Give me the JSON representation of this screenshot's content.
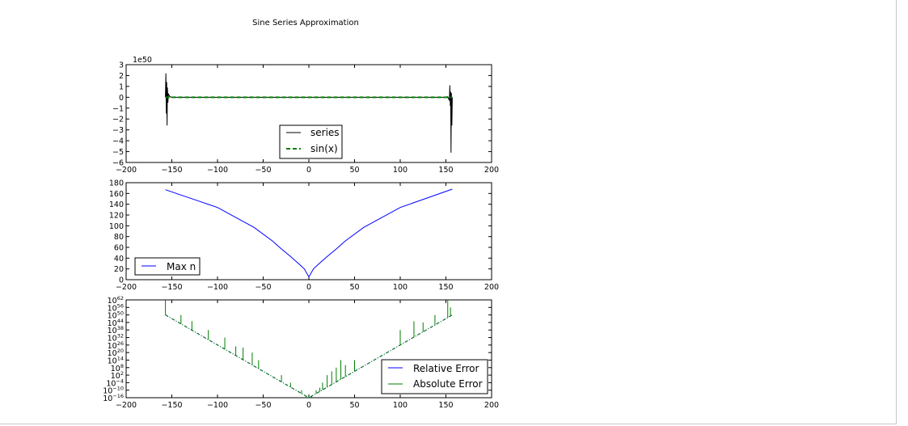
{
  "figure": {
    "title": "Sine Series Approximation"
  },
  "chart_data": [
    {
      "type": "line",
      "xlim": [
        -200,
        200
      ],
      "ylim": [
        -6,
        3
      ],
      "x_ticks": [
        "−200",
        "−150",
        "−100",
        "−50",
        "0",
        "50",
        "100",
        "150",
        "200"
      ],
      "y_ticks": [
        "3",
        "2",
        "1",
        "0",
        "−1",
        "−2",
        "−3",
        "−4",
        "−5",
        "−6"
      ],
      "y_offset_label": "1e50",
      "legend_position": "lower-center",
      "series": [
        {
          "name": "series",
          "color": "#000000",
          "style": "solid",
          "x": [
            -157,
            -156.5,
            -156,
            -155.6,
            -155.2,
            -154.8,
            -154.3,
            -153.8,
            -152,
            -150,
            0,
            150,
            152,
            153.8,
            154.3,
            154.8,
            155.2,
            155.6,
            156,
            156.5,
            157
          ],
          "y": [
            0,
            2.2,
            -1.5,
            1.4,
            -2.6,
            0.9,
            -0.5,
            0.3,
            0.05,
            0,
            0,
            0,
            0.05,
            -0.3,
            1.1,
            -0.8,
            0.5,
            -5.1,
            0.4,
            -2.6,
            0
          ]
        },
        {
          "name": "sin(x)",
          "color": "#007f00",
          "style": "dashed",
          "x": [
            -157,
            157
          ],
          "y": [
            0,
            0
          ]
        }
      ]
    },
    {
      "type": "line",
      "xlim": [
        -200,
        200
      ],
      "ylim": [
        0,
        180
      ],
      "x_ticks": [
        "−200",
        "−150",
        "−100",
        "−50",
        "0",
        "50",
        "100",
        "150",
        "200"
      ],
      "y_ticks": [
        "180",
        "160",
        "140",
        "120",
        "100",
        "80",
        "60",
        "40",
        "20",
        "0"
      ],
      "legend_position": "lower-left",
      "series": [
        {
          "name": "Max n",
          "color": "#0000ff",
          "style": "solid",
          "x": [
            -157,
            -100,
            -60,
            -40,
            -30,
            -20,
            -10,
            -5,
            0,
            5,
            10,
            20,
            30,
            40,
            60,
            100,
            157
          ],
          "y": [
            167,
            134,
            97,
            72,
            57,
            43,
            28,
            20,
            5,
            20,
            28,
            43,
            57,
            72,
            97,
            134,
            168
          ]
        }
      ]
    },
    {
      "type": "line",
      "yscale": "log",
      "xlim": [
        -200,
        200
      ],
      "ylim_exponent": [
        -16,
        62
      ],
      "x_ticks": [
        "−200",
        "−150",
        "−100",
        "−50",
        "0",
        "50",
        "100",
        "150",
        "200"
      ],
      "y_ticks": [
        {
          "base": "10",
          "exp": "62"
        },
        {
          "base": "10",
          "exp": "56"
        },
        {
          "base": "10",
          "exp": "50"
        },
        {
          "base": "10",
          "exp": "44"
        },
        {
          "base": "10",
          "exp": "38"
        },
        {
          "base": "10",
          "exp": "32"
        },
        {
          "base": "10",
          "exp": "26"
        },
        {
          "base": "10",
          "exp": "20"
        },
        {
          "base": "10",
          "exp": "14"
        },
        {
          "base": "10",
          "exp": "8"
        },
        {
          "base": "10",
          "exp": "2"
        },
        {
          "base": "10",
          "exp": "−4"
        },
        {
          "base": "10",
          "exp": "−10"
        },
        {
          "base": "10",
          "exp": "−16"
        }
      ],
      "legend_position": "lower-right",
      "series": [
        {
          "name": "Relative Error",
          "color": "#0000ff",
          "style": "dashdot",
          "x_exp": [
            [
              -157,
              50
            ],
            [
              0,
              -16
            ],
            [
              157,
              50
            ]
          ]
        },
        {
          "name": "Absolute Error",
          "color": "#007f00",
          "style": "dashdot",
          "x_exp": [
            [
              -157,
              50
            ],
            [
              0,
              -16
            ],
            [
              157,
              50
            ]
          ],
          "spikes": [
            [
              -157,
              62
            ],
            [
              -140,
              50
            ],
            [
              -128,
              45
            ],
            [
              -110,
              38
            ],
            [
              -92,
              32
            ],
            [
              -80,
              25
            ],
            [
              -72,
              24
            ],
            [
              -62,
              20
            ],
            [
              -55,
              14
            ],
            [
              -30,
              2
            ],
            [
              -20,
              -4
            ],
            [
              -8,
              -10
            ],
            [
              -3,
              -16
            ],
            [
              3,
              -16
            ],
            [
              8,
              -10
            ],
            [
              12,
              -8
            ],
            [
              15,
              -4
            ],
            [
              20,
              2
            ],
            [
              25,
              5
            ],
            [
              30,
              8
            ],
            [
              35,
              14
            ],
            [
              40,
              10
            ],
            [
              50,
              14
            ],
            [
              100,
              38
            ],
            [
              115,
              45
            ],
            [
              125,
              44
            ],
            [
              138,
              50
            ],
            [
              152,
              62
            ],
            [
              155,
              56
            ]
          ]
        }
      ]
    }
  ]
}
